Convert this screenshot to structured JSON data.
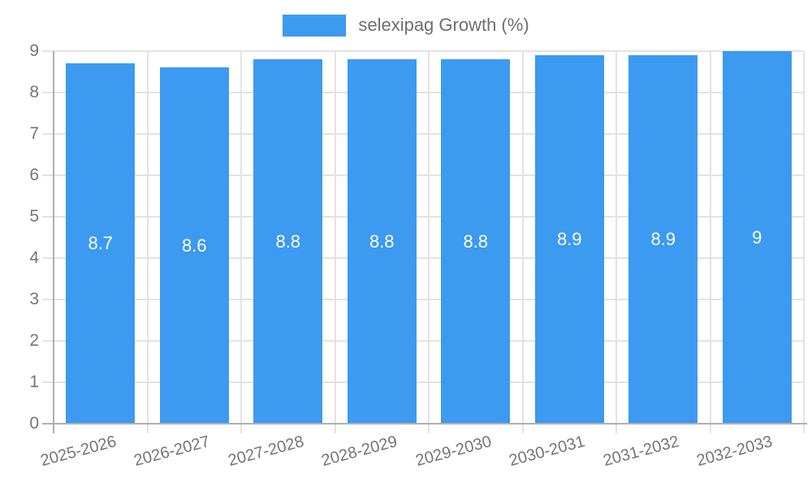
{
  "legend": {
    "label": "selexipag Growth (%)"
  },
  "chart_data": {
    "type": "bar",
    "title": "",
    "xlabel": "",
    "ylabel": "",
    "categories": [
      "2025-2026",
      "2026-2027",
      "2027-2028",
      "2028-2029",
      "2029-2030",
      "2030-2031",
      "2031-2032",
      "2032-2033"
    ],
    "series": [
      {
        "name": "selexipag Growth (%)",
        "values": [
          8.7,
          8.6,
          8.8,
          8.8,
          8.8,
          8.9,
          8.9,
          9
        ]
      }
    ],
    "bar_labels": [
      "8.7",
      "8.6",
      "8.8",
      "8.8",
      "8.8",
      "8.9",
      "8.9",
      "9"
    ],
    "ylim": [
      0,
      9
    ],
    "yticks": [
      0,
      1,
      2,
      3,
      4,
      5,
      6,
      7,
      8,
      9
    ],
    "grid": true,
    "legend_position": "top-center",
    "colors": {
      "bar": "#3c9af0",
      "grid": "#e3e3e3",
      "axis": "#b0b0b0",
      "tick_text": "#757575",
      "value_label": "#ffffff"
    }
  }
}
